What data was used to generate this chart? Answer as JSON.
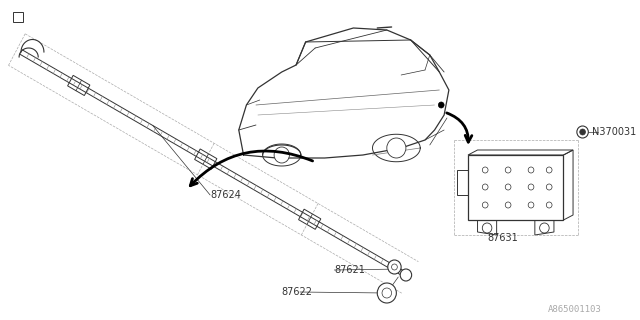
{
  "bg_color": "#ffffff",
  "line_color": "#333333",
  "dashed_color": "#aaaaaa",
  "watermark": "A865001103",
  "label_fontsize": 7,
  "watermark_fontsize": 6.5
}
